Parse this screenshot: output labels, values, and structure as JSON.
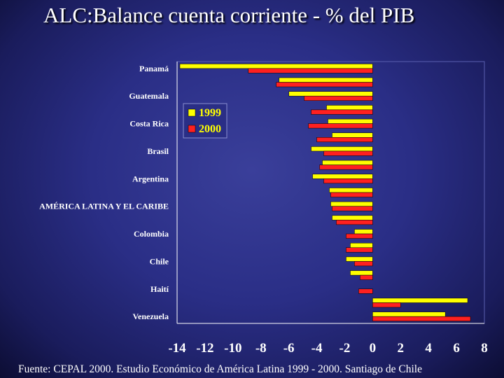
{
  "title": "ALC:Balance cuenta corriente - % del PIB",
  "footer": "Fuente: CEPAL 2000. Estudio Económico  de América Latina 1999 - 2000. Santiago de Chile",
  "chart_data": {
    "type": "bar",
    "orientation": "horizontal",
    "title": "",
    "xlabel": "",
    "ylabel": "",
    "xlim": [
      -14,
      8
    ],
    "x_ticks": [
      -14,
      -12,
      -10,
      -8,
      -6,
      -4,
      -2,
      0,
      2,
      4,
      6,
      8
    ],
    "grid": false,
    "legend_position": "upper-left-inside",
    "label_rows": {
      "Panamá": 0,
      "Guatemala": 2,
      "Costa Rica": 4,
      "Brasil": 6,
      "Argentina": 8,
      "AMÉRICA LATINA Y EL CARIBE": 10,
      "Colombia": 12,
      "Chile": 14,
      "Haití": 16,
      "Venezuela": 18
    },
    "categories": [
      "Panamá",
      "",
      "Guatemala",
      "",
      "Costa Rica",
      "",
      "Brasil",
      "",
      "Argentina",
      "",
      "AMÉRICA LATINA Y EL CARIBE",
      "",
      "Colombia",
      "",
      "Chile",
      "",
      "Haití",
      "",
      "Venezuela"
    ],
    "series": [
      {
        "name": "1999",
        "color": "#ffff00",
        "values": [
          -13.8,
          -6.7,
          -6,
          -3.3,
          -3.2,
          -2.9,
          -4.4,
          -3.6,
          -4.3,
          -3.1,
          -3,
          -2.9,
          -1.3,
          -1.6,
          -1.9,
          -1.6,
          0,
          6.8,
          5.2
        ]
      },
      {
        "name": "2000",
        "color": "#ff2020",
        "values": [
          -8.9,
          -6.9,
          -4.9,
          -4.4,
          -4.6,
          -4,
          -3.5,
          -3.8,
          -3.5,
          -3,
          -2.9,
          -2.6,
          -1.9,
          -1.9,
          -1.3,
          -0.9,
          -1,
          2,
          7
        ]
      }
    ]
  }
}
